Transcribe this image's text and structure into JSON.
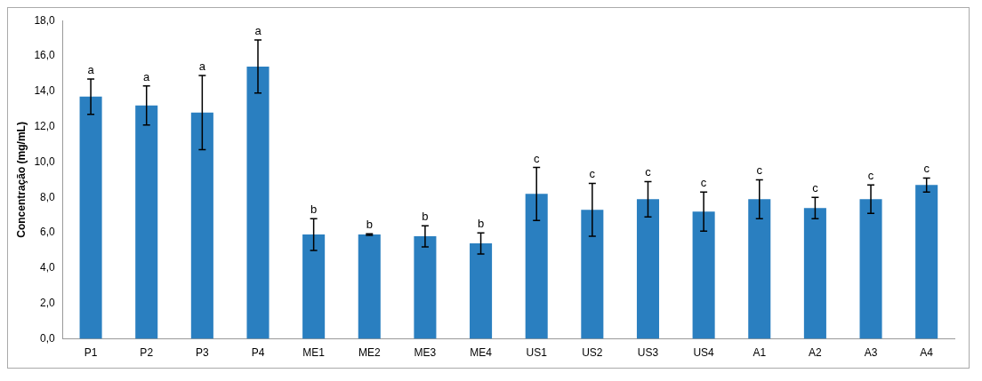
{
  "chart_data": {
    "type": "bar",
    "ylabel": "Concentração (mg/mL)",
    "categories": [
      "P1",
      "P2",
      "P3",
      "P4",
      "ME1",
      "ME2",
      "ME3",
      "ME4",
      "US1",
      "US2",
      "US3",
      "US4",
      "A1",
      "A2",
      "A3",
      "A4"
    ],
    "values": [
      13.7,
      13.2,
      12.8,
      15.4,
      5.9,
      5.9,
      5.8,
      5.4,
      8.2,
      7.3,
      7.9,
      7.2,
      7.9,
      7.4,
      7.9,
      8.7
    ],
    "errors": [
      1.0,
      1.1,
      2.1,
      1.5,
      0.9,
      0.05,
      0.6,
      0.6,
      1.5,
      1.5,
      1.0,
      1.1,
      1.1,
      0.6,
      0.8,
      0.4
    ],
    "color": "#2a7fc0",
    "ylim": [
      0,
      18
    ],
    "yticks": [
      {
        "value": 0,
        "label": "0,0"
      },
      {
        "value": 2,
        "label": "2,0"
      },
      {
        "value": 4,
        "label": "4,0"
      },
      {
        "value": 6,
        "label": "6,0"
      },
      {
        "value": 8,
        "label": "8,0"
      },
      {
        "value": 10,
        "label": "10,0"
      },
      {
        "value": 12,
        "label": "12,0"
      },
      {
        "value": 14,
        "label": "14,0"
      },
      {
        "value": 16,
        "label": "16,0"
      },
      {
        "value": 18,
        "label": "18,0"
      }
    ],
    "grid": false,
    "legend": false,
    "annotations": [
      {
        "text": "a",
        "x": "P1",
        "y": 14.7
      },
      {
        "text": "a",
        "x": "P2",
        "y": 14.3
      },
      {
        "text": "a",
        "x": "P3",
        "y": 14.9
      },
      {
        "text": "a",
        "x": "P4",
        "y": 16.9
      },
      {
        "text": "b",
        "x": "ME1",
        "y": 6.8
      },
      {
        "text": "b",
        "x": "ME2",
        "y": 5.95
      },
      {
        "text": "b",
        "x": "ME3",
        "y": 6.4
      },
      {
        "text": "b",
        "x": "ME4",
        "y": 6.0
      },
      {
        "text": "c",
        "x": "US1",
        "y": 9.7
      },
      {
        "text": "c",
        "x": "US2",
        "y": 8.8
      },
      {
        "text": "c",
        "x": "US3",
        "y": 8.9
      },
      {
        "text": "c",
        "x": "US4",
        "y": 8.3
      },
      {
        "text": "c",
        "x": "A1",
        "y": 9.0
      },
      {
        "text": "c",
        "x": "A2",
        "y": 8.0
      },
      {
        "text": "c",
        "x": "A3",
        "y": 8.7
      },
      {
        "text": "c",
        "x": "A4",
        "y": 9.1
      }
    ]
  }
}
